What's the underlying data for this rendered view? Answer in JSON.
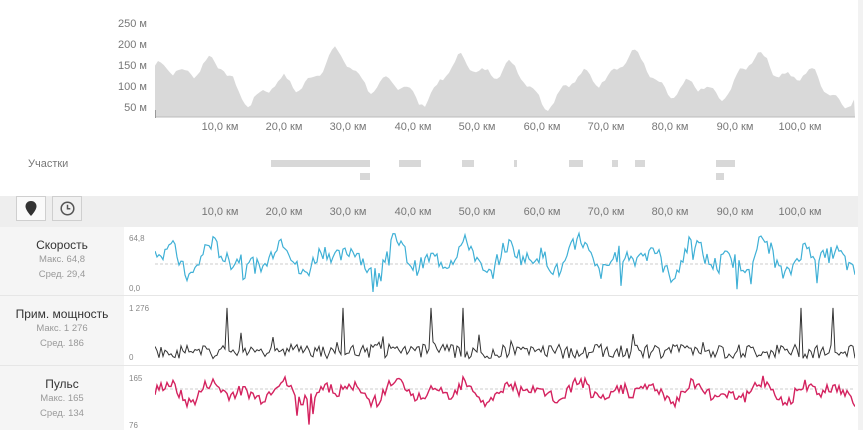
{
  "elevation": {
    "y_labels": [
      "250 м",
      "200 м",
      "150 м",
      "100 м",
      "50 м"
    ],
    "fill_color": "#d9d9d9"
  },
  "distance_axis": {
    "labels": [
      "10,0 км",
      "20,0 км",
      "30,0 км",
      "40,0 км",
      "50,0 км",
      "60,0 км",
      "70,0 км",
      "80,0 км",
      "90,0 км",
      "100,0 км"
    ]
  },
  "segments": {
    "title": "Участки"
  },
  "toolbar": {
    "map_icon": "map-pin-icon",
    "time_icon": "clock-icon"
  },
  "metrics": [
    {
      "key": "speed",
      "title": "Скорость",
      "max_text": "Макс. 64,8",
      "avg_text": "Сред. 29,4",
      "y_top": "64,8",
      "y_bottom": "0,0",
      "color": "#3fb0d6"
    },
    {
      "key": "power",
      "title": "Прим. мощность",
      "max_text": "Макс. 1 276",
      "avg_text": "Сред. 186",
      "y_top": "1 276",
      "y_bottom": "0",
      "color": "#333333"
    },
    {
      "key": "heart_rate",
      "title": "Пульс",
      "max_text": "Макс. 165",
      "avg_text": "Сред. 134",
      "y_top": "165",
      "y_bottom": "76",
      "color": "#d4225f"
    }
  ]
}
